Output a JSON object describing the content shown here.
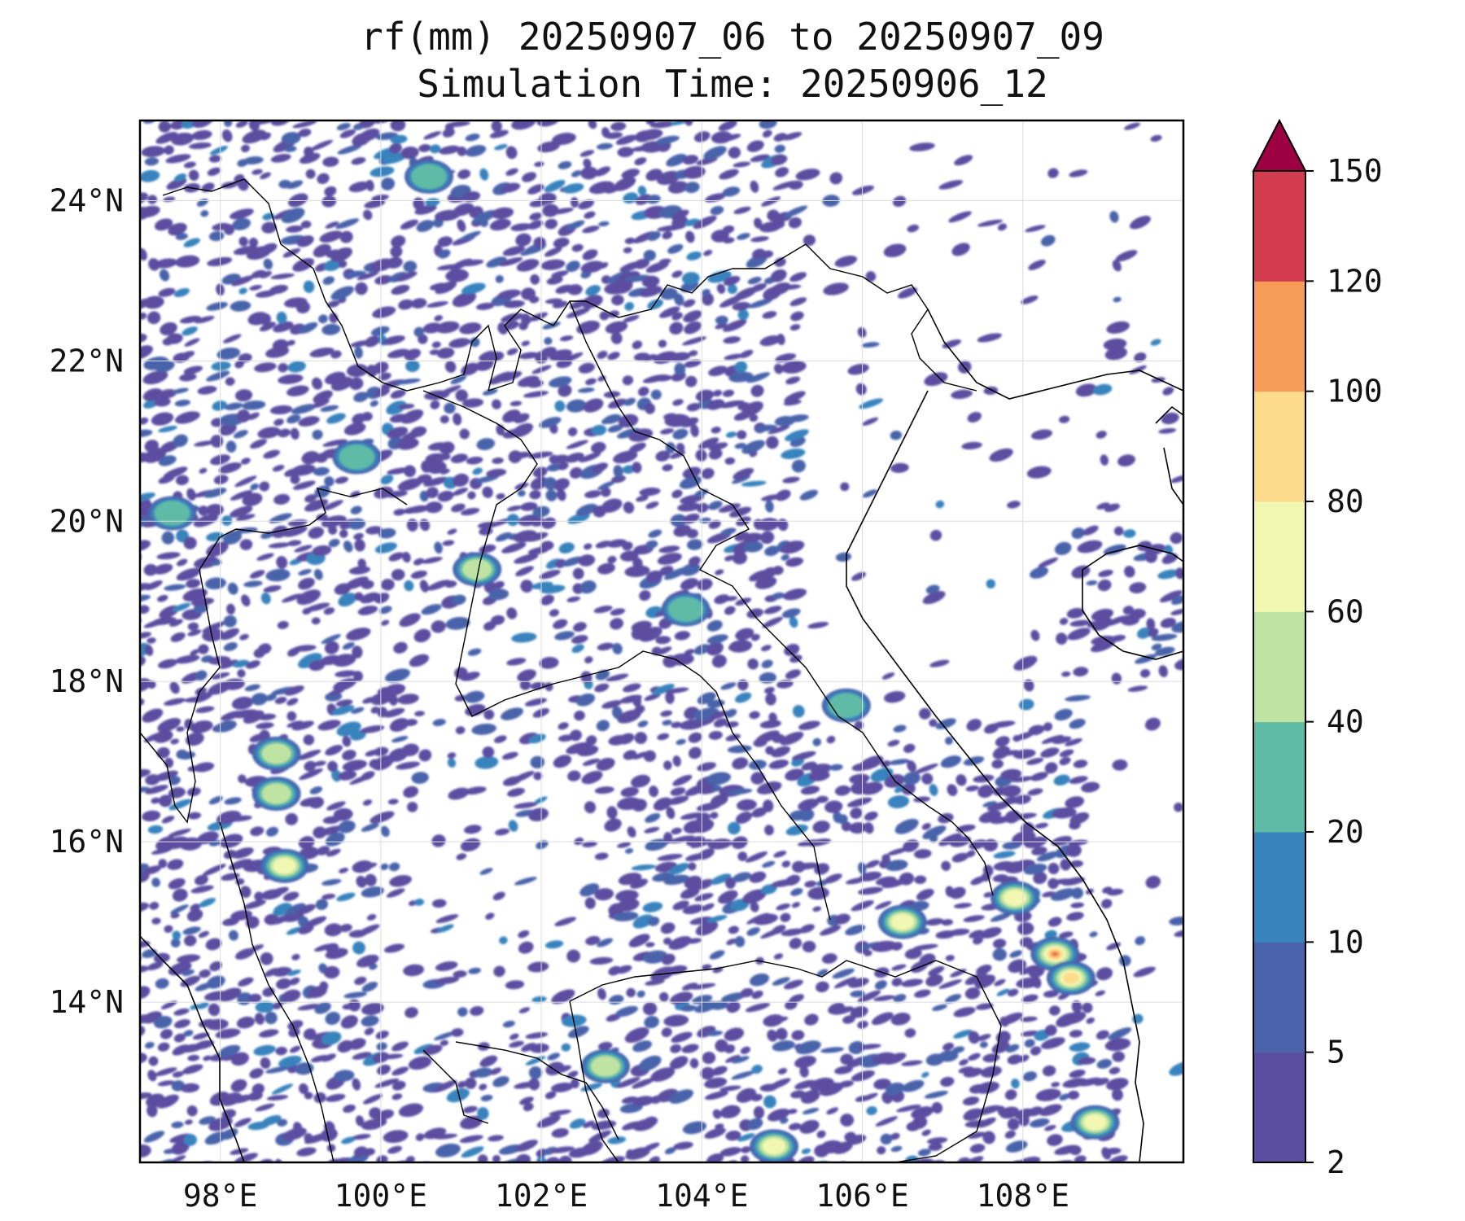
{
  "title": {
    "line1": "rf(mm) 20250907_06 to 20250907_09",
    "line2": "Simulation Time: 20250906_12"
  },
  "map": {
    "lon_range": [
      97,
      110
    ],
    "lat_range": [
      12,
      25
    ],
    "lon_ticks": [
      "98°E",
      "100°E",
      "102°E",
      "104°E",
      "106°E",
      "108°E"
    ],
    "lat_ticks": [
      "24°N",
      "22°N",
      "20°N",
      "18°N",
      "16°N",
      "14°N"
    ],
    "region": "Indochina / South China (Myanmar, Thailand, Laos, Vietnam, Cambodia, Hainan)"
  },
  "colorbar": {
    "levels": [
      "2",
      "5",
      "10",
      "20",
      "40",
      "60",
      "80",
      "100",
      "120",
      "150"
    ],
    "colors": [
      "#5b4ea0",
      "#4a63ab",
      "#3983bd",
      "#5fbaa6",
      "#bfe3a3",
      "#f2f8b2",
      "#fcdb8c",
      "#f89c5a",
      "#d33c4e"
    ],
    "extend_color": "#9c0141",
    "extend": "max"
  },
  "rain_cells": [
    {
      "lon": 98.8,
      "lat": 15.7,
      "level": 5
    },
    {
      "lon": 98.7,
      "lat": 16.6,
      "level": 4
    },
    {
      "lon": 98.7,
      "lat": 17.1,
      "level": 4
    },
    {
      "lon": 101.2,
      "lat": 19.4,
      "level": 4
    },
    {
      "lon": 102.8,
      "lat": 13.2,
      "level": 4
    },
    {
      "lon": 104.9,
      "lat": 12.2,
      "level": 5
    },
    {
      "lon": 106.5,
      "lat": 15.0,
      "level": 5
    },
    {
      "lon": 107.9,
      "lat": 15.3,
      "level": 5
    },
    {
      "lon": 108.4,
      "lat": 14.6,
      "level": 8
    },
    {
      "lon": 108.6,
      "lat": 14.3,
      "level": 6
    },
    {
      "lon": 108.9,
      "lat": 12.5,
      "level": 5
    },
    {
      "lon": 97.4,
      "lat": 20.1,
      "level": 3
    },
    {
      "lon": 99.7,
      "lat": 20.8,
      "level": 3
    },
    {
      "lon": 100.6,
      "lat": 24.3,
      "level": 3
    },
    {
      "lon": 103.8,
      "lat": 18.9,
      "level": 3
    },
    {
      "lon": 105.8,
      "lat": 17.7,
      "level": 3
    }
  ]
}
